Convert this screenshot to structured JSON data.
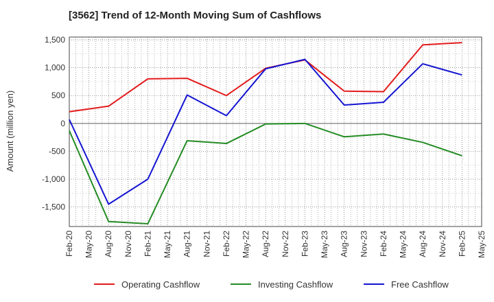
{
  "chart_data": {
    "type": "line",
    "title": "[3562]  Trend of 12-Month Moving Sum of Cashflows",
    "ylabel": "Amount (million yen)",
    "xlabel": "",
    "ylim": [
      -1850,
      1550
    ],
    "yticks": [
      1500,
      1000,
      500,
      0,
      -500,
      -1000,
      -1500
    ],
    "ytick_labels": [
      "1,500",
      "1,000",
      "500",
      "0",
      "-500",
      "-1,000",
      "-1,500"
    ],
    "x_tick_labels": [
      "Feb-20",
      "May-20",
      "Aug-20",
      "Nov-20",
      "Feb-21",
      "May-21",
      "Aug-21",
      "Nov-21",
      "Feb-22",
      "May-22",
      "Aug-22",
      "Nov-22",
      "Feb-23",
      "May-23",
      "Aug-23",
      "Nov-23",
      "Feb-24",
      "May-24",
      "Aug-24",
      "Nov-24",
      "Feb-25",
      "May-25"
    ],
    "grid": true,
    "legend_position": "bottom",
    "series": [
      {
        "name": "Operating Cashflow",
        "color": "#e31a1c",
        "points": [
          {
            "x": "Feb-20",
            "y": 210
          },
          {
            "x": "Aug-20",
            "y": 310
          },
          {
            "x": "Feb-21",
            "y": 800
          },
          {
            "x": "Aug-21",
            "y": 810
          },
          {
            "x": "Feb-22",
            "y": 500
          },
          {
            "x": "Aug-22",
            "y": 990
          },
          {
            "x": "Feb-23",
            "y": 1140
          },
          {
            "x": "Aug-23",
            "y": 580
          },
          {
            "x": "Feb-24",
            "y": 570
          },
          {
            "x": "Aug-24",
            "y": 1410
          },
          {
            "x": "Feb-25",
            "y": 1450
          }
        ]
      },
      {
        "name": "Investing Cashflow",
        "color": "#238b23",
        "points": [
          {
            "x": "Feb-20",
            "y": -130
          },
          {
            "x": "Aug-20",
            "y": -1760
          },
          {
            "x": "Feb-21",
            "y": -1800
          },
          {
            "x": "Aug-21",
            "y": -310
          },
          {
            "x": "Feb-22",
            "y": -360
          },
          {
            "x": "Aug-22",
            "y": -10
          },
          {
            "x": "Feb-23",
            "y": 0
          },
          {
            "x": "Aug-23",
            "y": -240
          },
          {
            "x": "Feb-24",
            "y": -190
          },
          {
            "x": "Aug-24",
            "y": -340
          },
          {
            "x": "Feb-25",
            "y": -580
          }
        ]
      },
      {
        "name": "Free Cashflow",
        "color": "#1414d2",
        "points": [
          {
            "x": "Feb-20",
            "y": 70
          },
          {
            "x": "Aug-20",
            "y": -1450
          },
          {
            "x": "Feb-21",
            "y": -1000
          },
          {
            "x": "Aug-21",
            "y": 510
          },
          {
            "x": "Feb-22",
            "y": 140
          },
          {
            "x": "Aug-22",
            "y": 980
          },
          {
            "x": "Feb-23",
            "y": 1150
          },
          {
            "x": "Aug-23",
            "y": 330
          },
          {
            "x": "Feb-24",
            "y": 380
          },
          {
            "x": "Aug-24",
            "y": 1070
          },
          {
            "x": "Feb-25",
            "y": 870
          }
        ]
      }
    ]
  }
}
